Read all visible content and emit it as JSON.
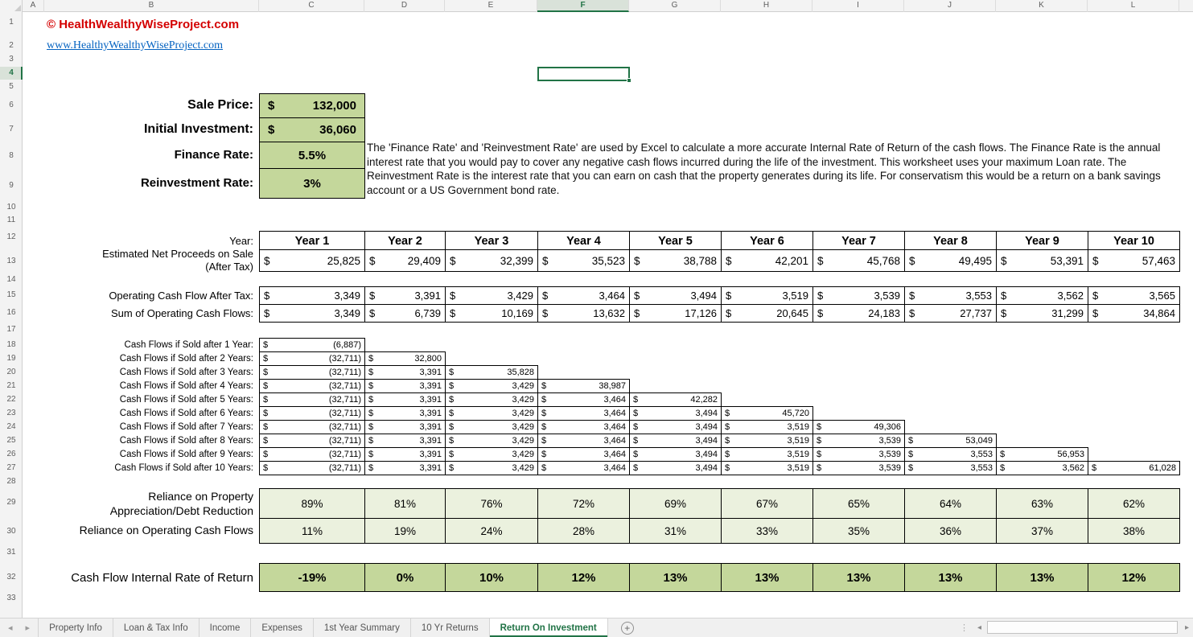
{
  "currency": "$",
  "header": {
    "copyright": "© HealthWealthyWiseProject.com",
    "website": "www.HealthyWealthyWiseProject.com"
  },
  "inputs": {
    "sale_price_label": "Sale Price:",
    "sale_price_value": "132,000",
    "initial_investment_label": "Initial Investment:",
    "initial_investment_value": "36,060",
    "finance_rate_label": "Finance Rate:",
    "finance_rate_value": "5.5%",
    "reinvestment_rate_label": "Reinvestment Rate:",
    "reinvestment_rate_value": "3%"
  },
  "description": "The 'Finance Rate' and 'Reinvestment Rate' are used by Excel to calculate a more accurate Internal Rate of Return of the cash flows.  The Finance Rate is the annual interest rate that you would pay to cover any negative cash flows incurred during the life of the investment.  This worksheet uses your maximum Loan rate.  The Reinvestment Rate is the interest rate that you can earn on cash that the property generates during its life.  For conservatism this would be a return on a bank savings account or a US Government bond rate.",
  "table": {
    "year_label": "Year:",
    "years": [
      "Year 1",
      "Year 2",
      "Year 3",
      "Year 4",
      "Year 5",
      "Year 6",
      "Year 7",
      "Year 8",
      "Year 9",
      "Year 10"
    ],
    "net_proceeds_label": "Estimated Net Proceeds on Sale (After Tax)",
    "net_proceeds": [
      "25,825",
      "29,409",
      "32,399",
      "35,523",
      "38,788",
      "42,201",
      "45,768",
      "49,495",
      "53,391",
      "57,463"
    ],
    "operating_cf_label": "Operating Cash Flow After Tax:",
    "operating_cf": [
      "3,349",
      "3,391",
      "3,429",
      "3,464",
      "3,494",
      "3,519",
      "3,539",
      "3,553",
      "3,562",
      "3,565"
    ],
    "sum_cf_label": "Sum of Operating Cash Flows:",
    "sum_cf": [
      "3,349",
      "6,739",
      "10,169",
      "13,632",
      "17,126",
      "20,645",
      "24,183",
      "27,737",
      "31,299",
      "34,864"
    ],
    "sold_rows": [
      {
        "label": "Cash Flows if Sold after 1 Year:",
        "values": [
          "(6,887)"
        ]
      },
      {
        "label": "Cash Flows if Sold after 2 Years:",
        "values": [
          "(32,711)",
          "32,800"
        ]
      },
      {
        "label": "Cash Flows if Sold after 3 Years:",
        "values": [
          "(32,711)",
          "3,391",
          "35,828"
        ]
      },
      {
        "label": "Cash Flows if Sold after 4 Years:",
        "values": [
          "(32,711)",
          "3,391",
          "3,429",
          "38,987"
        ]
      },
      {
        "label": "Cash Flows if Sold after 5 Years:",
        "values": [
          "(32,711)",
          "3,391",
          "3,429",
          "3,464",
          "42,282"
        ]
      },
      {
        "label": "Cash Flows if Sold after 6 Years:",
        "values": [
          "(32,711)",
          "3,391",
          "3,429",
          "3,464",
          "3,494",
          "45,720"
        ]
      },
      {
        "label": "Cash Flows if Sold after 7 Years:",
        "values": [
          "(32,711)",
          "3,391",
          "3,429",
          "3,464",
          "3,494",
          "3,519",
          "49,306"
        ]
      },
      {
        "label": "Cash Flows if Sold after 8 Years:",
        "values": [
          "(32,711)",
          "3,391",
          "3,429",
          "3,464",
          "3,494",
          "3,519",
          "3,539",
          "53,049"
        ]
      },
      {
        "label": "Cash Flows if Sold after 9 Years:",
        "values": [
          "(32,711)",
          "3,391",
          "3,429",
          "3,464",
          "3,494",
          "3,519",
          "3,539",
          "3,553",
          "56,953"
        ]
      },
      {
        "label": "Cash Flows if Sold after 10 Years:",
        "values": [
          "(32,711)",
          "3,391",
          "3,429",
          "3,464",
          "3,494",
          "3,519",
          "3,539",
          "3,553",
          "3,562",
          "61,028"
        ]
      }
    ],
    "reliance_appreciation_label": "Reliance on Property Appreciation/Debt Reduction",
    "reliance_appreciation": [
      "89%",
      "81%",
      "76%",
      "72%",
      "69%",
      "67%",
      "65%",
      "64%",
      "63%",
      "62%"
    ],
    "reliance_operating_label": "Reliance on Operating Cash Flows",
    "reliance_operating": [
      "11%",
      "19%",
      "24%",
      "28%",
      "31%",
      "33%",
      "35%",
      "36%",
      "37%",
      "38%"
    ],
    "irr_label": "Cash Flow Internal Rate of Return",
    "irr": [
      "-19%",
      "0%",
      "10%",
      "12%",
      "13%",
      "13%",
      "13%",
      "13%",
      "13%",
      "12%"
    ]
  },
  "sheet": {
    "columns": [
      "A",
      "B",
      "C",
      "D",
      "E",
      "F",
      "G",
      "H",
      "I",
      "J",
      "K",
      "L"
    ],
    "rows": [
      "1",
      "2",
      "3",
      "4",
      "5",
      "6",
      "7",
      "8",
      "9",
      "10",
      "11",
      "12",
      "13",
      "14",
      "15",
      "16",
      "17",
      "18",
      "19",
      "20",
      "21",
      "22",
      "23",
      "24",
      "25",
      "26",
      "27",
      "28",
      "29",
      "30",
      "31",
      "32",
      "33"
    ],
    "selected_column": "F",
    "selected_row": "4"
  },
  "tabs": {
    "nav_left": "◂",
    "nav_right": "▸",
    "items": [
      "Property Info",
      "Loan & Tax Info",
      "Income",
      "Expenses",
      "1st Year Summary",
      "10 Yr Returns",
      "Return On Investment"
    ],
    "active": "Return On Investment",
    "add_label": "+"
  },
  "colors": {
    "accent_green": "#217346",
    "input_fill": "#c4d79b",
    "light_fill": "#ebf1de",
    "copyright_red": "#d40000",
    "link_blue": "#0563c1"
  }
}
